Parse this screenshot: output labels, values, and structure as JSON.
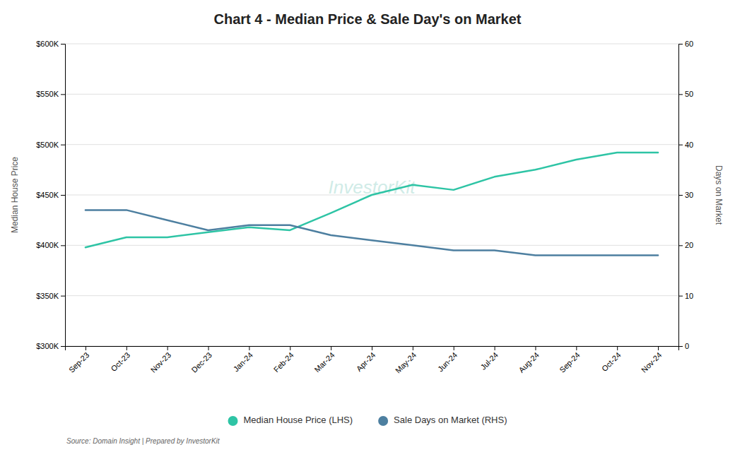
{
  "chart_data": {
    "type": "line",
    "title": "Chart 4 - Median Price & Sale Day's on Market",
    "ylabel": "Median House Price",
    "y2label": "Days on Market",
    "annotations": [
      "InvestorKit",
      "Source: Domain Insight | Prepared by InvestorKit"
    ],
    "categories": [
      "Sep-23",
      "Oct-23",
      "Nov-23",
      "Dec-23",
      "Jan-24",
      "Feb-24",
      "Mar-24",
      "Apr-24",
      "May-24",
      "Jun-24",
      "Jul-24",
      "Aug-24",
      "Sep-24",
      "Oct-24",
      "Nov-24"
    ],
    "series": [
      {
        "name": "Median House Price (LHS)",
        "color": "#2ec4a5",
        "values": [
          398000,
          408000,
          408000,
          413000,
          418000,
          415000,
          432000,
          450000,
          460000,
          455000,
          468000,
          475000,
          485000,
          492000,
          492000
        ]
      },
      {
        "name": "Sale Days on Market (RHS)",
        "color": "#4d7fa0",
        "axis": "y2",
        "values": [
          27,
          27,
          25,
          23,
          24,
          24,
          22,
          21,
          20,
          19,
          19,
          18,
          18,
          18,
          18
        ]
      }
    ],
    "ylim": [
      300000,
      600000
    ],
    "yticks": [
      {
        "value": 300000,
        "label": "$300K"
      },
      {
        "value": 350000,
        "label": "$350K"
      },
      {
        "value": 400000,
        "label": "$400K"
      },
      {
        "value": 450000,
        "label": "$450K"
      },
      {
        "value": 500000,
        "label": "$500K"
      },
      {
        "value": 550000,
        "label": "$550K"
      },
      {
        "value": 600000,
        "label": "$600K"
      }
    ],
    "y2lim": [
      0,
      60
    ],
    "y2ticks": [
      0,
      10,
      20,
      30,
      40,
      50,
      60
    ],
    "grid": true,
    "legend": "bottom"
  }
}
